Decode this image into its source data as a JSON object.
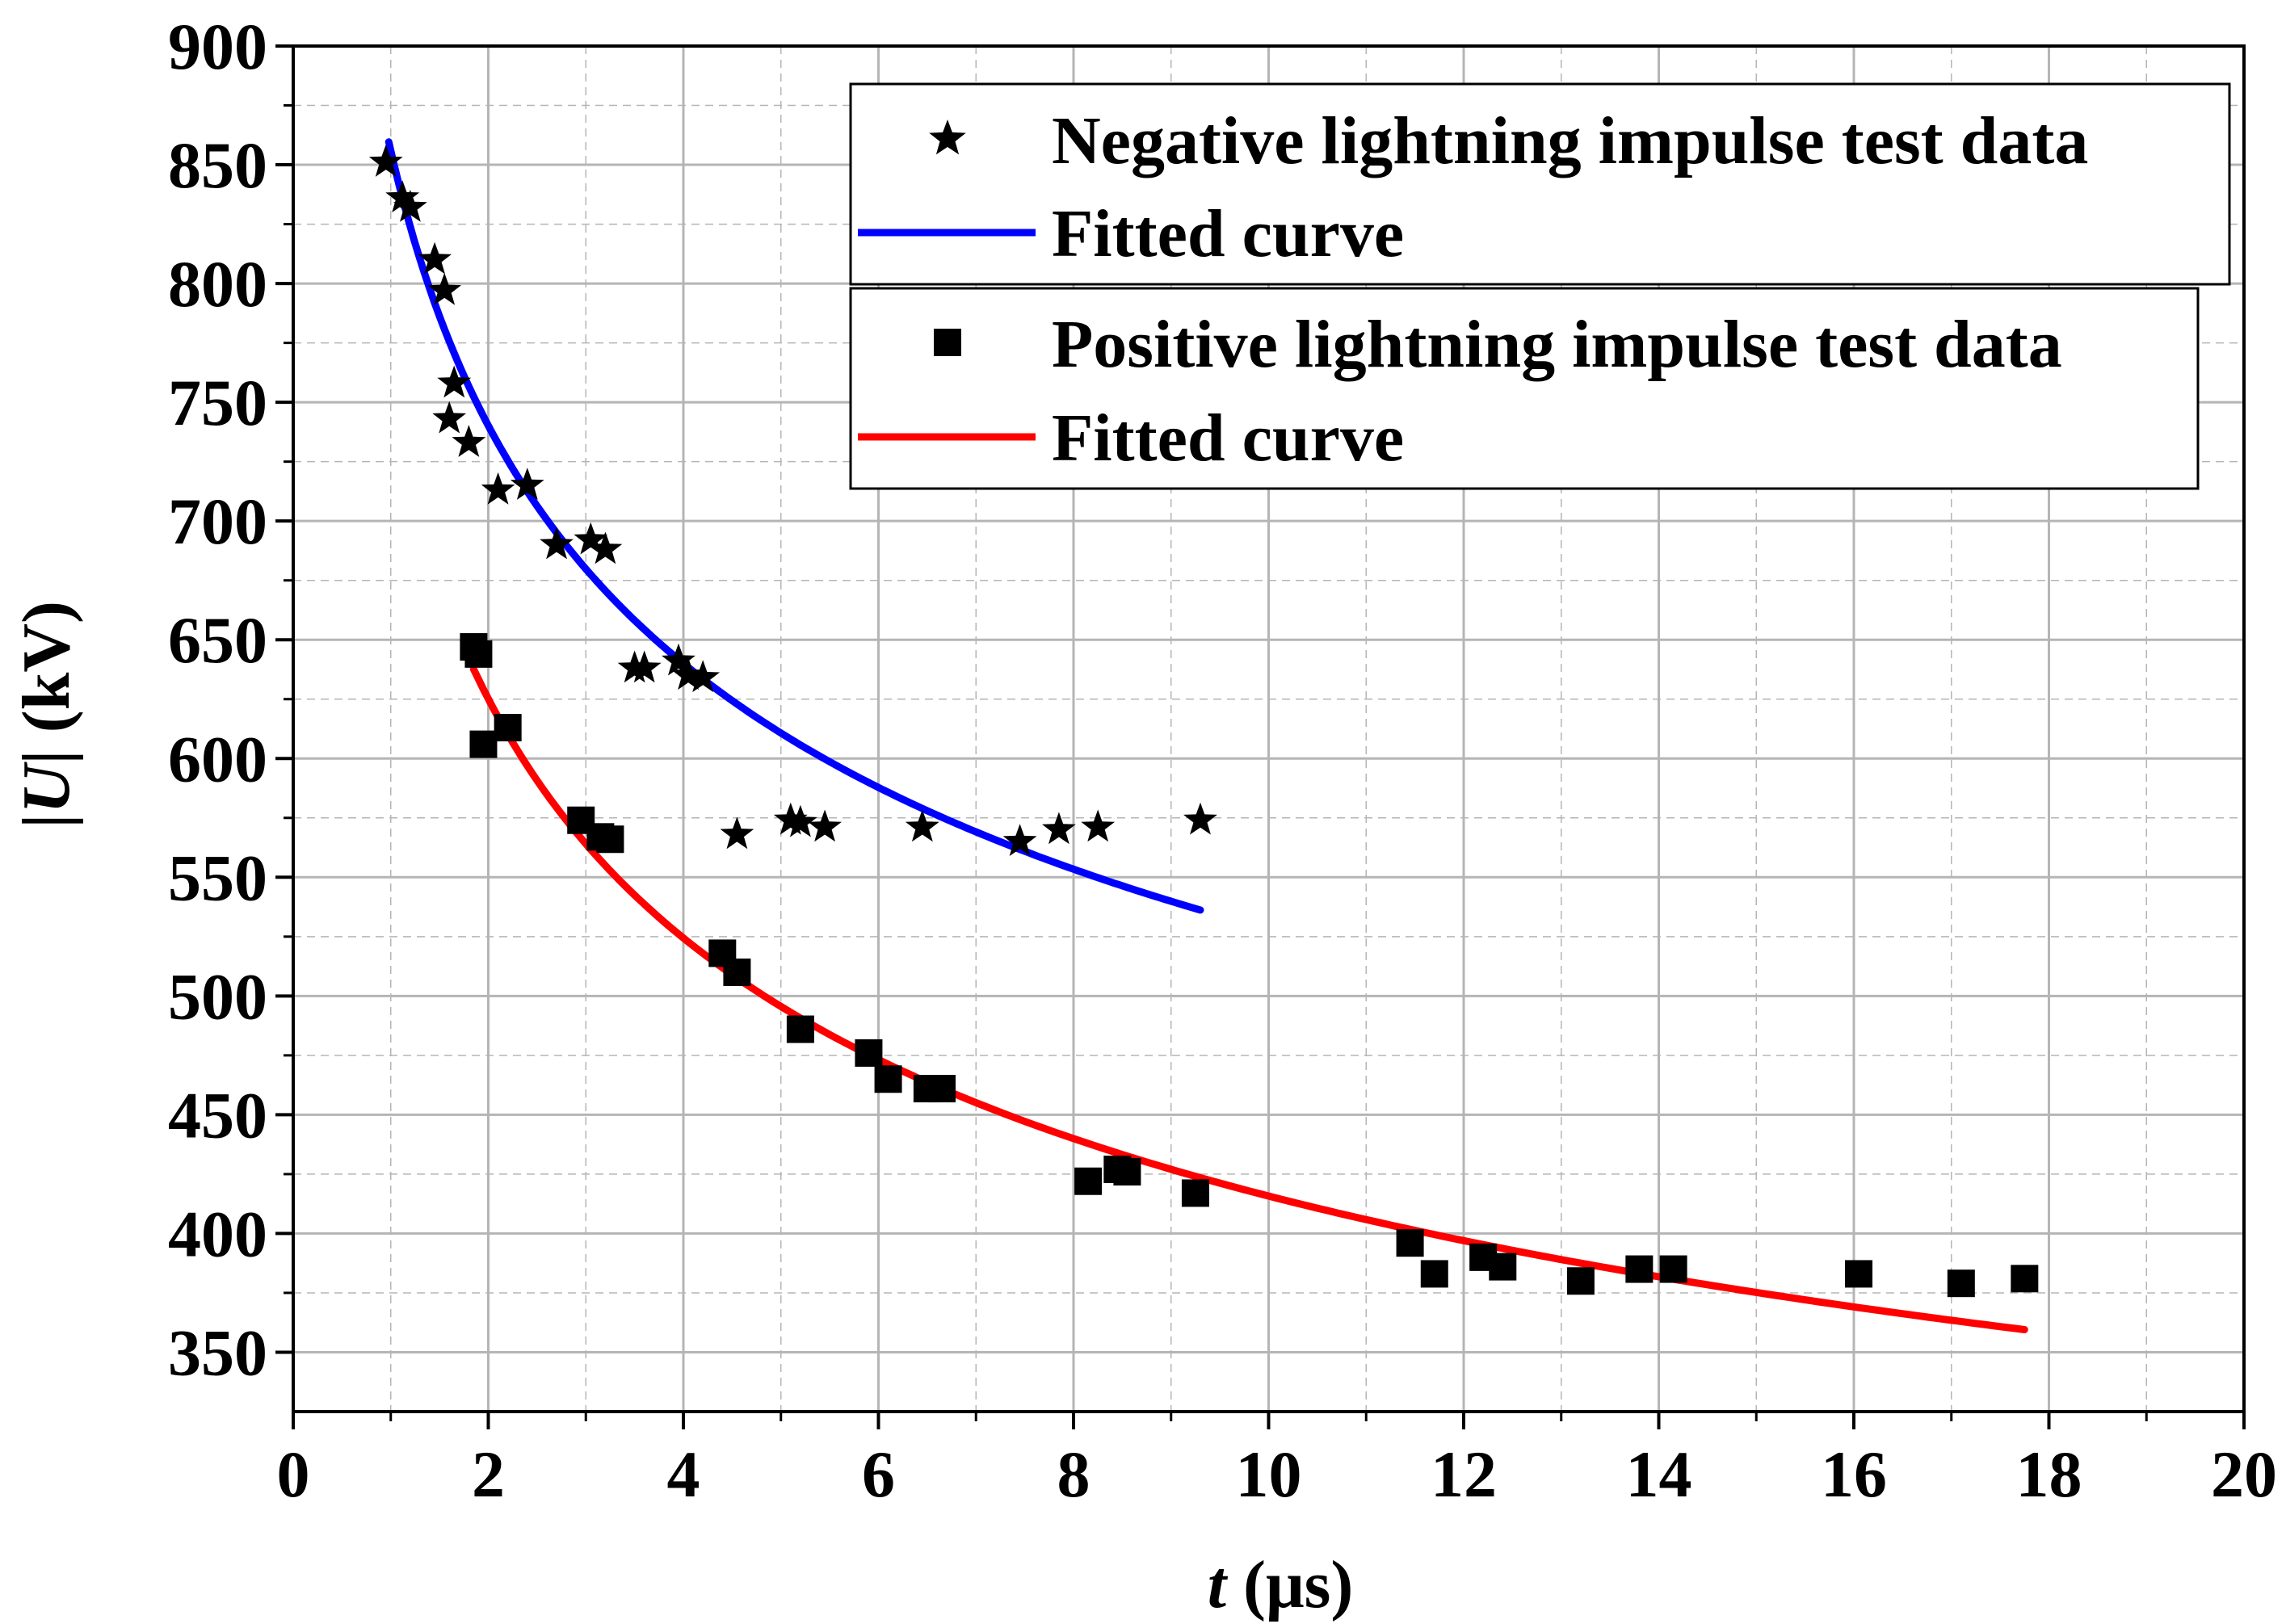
{
  "chart_data": {
    "type": "scatter",
    "xlabel": {
      "symbol": "t",
      "unit": " (μs)"
    },
    "ylabel": {
      "symbol": "U",
      "unit": " (kV)"
    },
    "xlim": [
      0,
      20
    ],
    "ylim": [
      325,
      900
    ],
    "xticks": [
      0,
      2,
      4,
      6,
      8,
      10,
      12,
      14,
      16,
      18,
      20
    ],
    "yticks": [
      350,
      400,
      450,
      500,
      550,
      600,
      650,
      700,
      750,
      800,
      850,
      900
    ],
    "xtick_labels": [
      "0",
      "2",
      "4",
      "6",
      "8",
      "10",
      "12",
      "14",
      "16",
      "18",
      "20"
    ],
    "ytick_labels": [
      "350",
      "400",
      "450",
      "500",
      "550",
      "600",
      "650",
      "700",
      "750",
      "800",
      "850",
      "900"
    ],
    "grid": "dashed",
    "legend_position": "top-right",
    "colors": {
      "negative_fit": "#0000ff",
      "positive_fit": "#ff0000",
      "markers": "#000000"
    },
    "series": [
      {
        "name": "Negative lightning impulse test data",
        "kind": "scatter",
        "marker": "star",
        "points": [
          [
            0.95,
            851
          ],
          [
            1.12,
            836
          ],
          [
            1.2,
            832
          ],
          [
            1.45,
            810
          ],
          [
            1.55,
            797
          ],
          [
            1.65,
            758
          ],
          [
            1.6,
            743
          ],
          [
            1.8,
            733
          ],
          [
            2.1,
            713
          ],
          [
            2.4,
            715
          ],
          [
            2.7,
            690
          ],
          [
            3.05,
            692
          ],
          [
            3.2,
            688
          ],
          [
            3.5,
            638
          ],
          [
            3.6,
            638
          ],
          [
            3.95,
            641
          ],
          [
            4.05,
            635
          ],
          [
            4.2,
            634
          ],
          [
            4.55,
            568
          ],
          [
            5.1,
            574
          ],
          [
            5.2,
            573
          ],
          [
            5.45,
            571
          ],
          [
            6.45,
            571
          ],
          [
            7.45,
            565
          ],
          [
            7.85,
            570
          ],
          [
            8.25,
            571
          ],
          [
            9.3,
            574
          ]
        ]
      },
      {
        "name": "Fitted curve",
        "kind": "line",
        "fit_of": "negative",
        "color": "#0000ff",
        "x_range": [
          0.98,
          9.3
        ],
        "points": [
          [
            1.0,
            878
          ],
          [
            2.0,
            720
          ],
          [
            4.0,
            630
          ],
          [
            6.0,
            585
          ],
          [
            8.0,
            558
          ],
          [
            9.3,
            544
          ]
        ]
      },
      {
        "name": "Positive lightning impulse test data",
        "kind": "scatter",
        "marker": "square",
        "points": [
          [
            1.85,
            647
          ],
          [
            1.9,
            644
          ],
          [
            1.95,
            606
          ],
          [
            2.2,
            613
          ],
          [
            2.95,
            574
          ],
          [
            3.15,
            567
          ],
          [
            3.25,
            566
          ],
          [
            4.4,
            518
          ],
          [
            4.55,
            510
          ],
          [
            5.2,
            486
          ],
          [
            5.9,
            476
          ],
          [
            6.1,
            465
          ],
          [
            6.5,
            461
          ],
          [
            6.65,
            461
          ],
          [
            8.15,
            422
          ],
          [
            8.45,
            427
          ],
          [
            8.55,
            426
          ],
          [
            9.25,
            417
          ],
          [
            11.45,
            396
          ],
          [
            11.7,
            383
          ],
          [
            12.2,
            390
          ],
          [
            12.4,
            386
          ],
          [
            13.2,
            380
          ],
          [
            13.8,
            385
          ],
          [
            14.15,
            385
          ],
          [
            16.05,
            383
          ],
          [
            17.1,
            379
          ],
          [
            17.75,
            381
          ]
        ]
      },
      {
        "name": "Fitted curve",
        "kind": "line",
        "fit_of": "positive",
        "color": "#ff0000",
        "x_range": [
          1.85,
          17.75
        ],
        "points": [
          [
            1.85,
            644
          ],
          [
            4.0,
            520
          ],
          [
            8.0,
            435
          ],
          [
            12.0,
            395
          ],
          [
            16.0,
            372
          ],
          [
            17.75,
            362
          ]
        ]
      }
    ],
    "legend_boxes": [
      [
        {
          "label": "Negative lightning impulse test data",
          "symbol": "star"
        },
        {
          "label": "Fitted curve",
          "symbol": "line",
          "color": "#0000ff"
        }
      ],
      [
        {
          "label": "Positive lightning impulse test data",
          "symbol": "square"
        },
        {
          "label": "Fitted curve",
          "symbol": "line",
          "color": "#ff0000"
        }
      ]
    ]
  }
}
